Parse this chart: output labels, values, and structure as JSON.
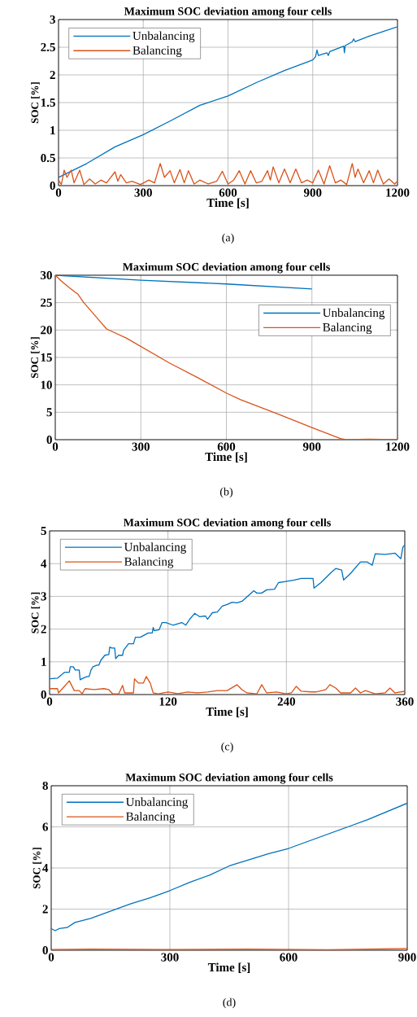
{
  "chart_data": [
    {
      "type": "line",
      "title": "Maximum SOC deviation among four cells",
      "xlabel": "Time [s]",
      "ylabel": "SOC [%]",
      "annotations": [
        "(a)"
      ],
      "xlim": [
        0,
        1200
      ],
      "xticks": [
        0,
        300,
        600,
        900,
        1200
      ],
      "ylim": [
        0,
        3
      ],
      "yticks": [
        0,
        0.5,
        1,
        1.5,
        2,
        2.5,
        3
      ],
      "grid": true,
      "legend": "top left",
      "series": [
        {
          "name": "Unbalancing",
          "color": "#0072bd",
          "x": [
            0,
            100,
            200,
            300,
            400,
            500,
            600,
            700,
            800,
            900,
            910,
            915,
            920,
            950,
            955,
            960,
            1010,
            1012,
            1015,
            1040,
            1045,
            1050,
            1100,
            1200
          ],
          "values": [
            0.15,
            0.4,
            0.7,
            0.92,
            1.18,
            1.45,
            1.62,
            1.86,
            2.08,
            2.27,
            2.33,
            2.45,
            2.35,
            2.4,
            2.35,
            2.42,
            2.52,
            2.4,
            2.53,
            2.6,
            2.65,
            2.6,
            2.7,
            2.87
          ]
        },
        {
          "name": "Balancing",
          "color": "#d95319",
          "x": [
            0,
            10,
            20,
            30,
            45,
            55,
            75,
            90,
            110,
            130,
            150,
            170,
            200,
            210,
            220,
            240,
            260,
            290,
            320,
            340,
            360,
            375,
            395,
            410,
            430,
            445,
            460,
            480,
            500,
            530,
            560,
            580,
            600,
            620,
            640,
            660,
            680,
            700,
            720,
            740,
            750,
            760,
            780,
            800,
            820,
            840,
            860,
            880,
            900,
            920,
            940,
            960,
            980,
            1000,
            1020,
            1040,
            1050,
            1060,
            1080,
            1100,
            1115,
            1130,
            1150,
            1170,
            1190,
            1200
          ],
          "values": [
            0.1,
            0.02,
            0.28,
            0.15,
            0.28,
            0.05,
            0.28,
            0.02,
            0.12,
            0.03,
            0.1,
            0.05,
            0.25,
            0.08,
            0.2,
            0.05,
            0.08,
            0.02,
            0.1,
            0.05,
            0.4,
            0.15,
            0.27,
            0.05,
            0.29,
            0.05,
            0.27,
            0.03,
            0.1,
            0.03,
            0.08,
            0.26,
            0.03,
            0.1,
            0.27,
            0.03,
            0.27,
            0.05,
            0.08,
            0.27,
            0.1,
            0.34,
            0.05,
            0.3,
            0.05,
            0.3,
            0.05,
            0.1,
            0.05,
            0.28,
            0.03,
            0.36,
            0.05,
            0.1,
            0.02,
            0.4,
            0.15,
            0.3,
            0.05,
            0.27,
            0.05,
            0.28,
            0.03,
            0.12,
            0.03,
            0.08
          ]
        }
      ]
    },
    {
      "type": "line",
      "title": "Maximum SOC deviation among four cells",
      "xlabel": "Time [s]",
      "ylabel": "SOC [%]",
      "annotations": [
        "(b)"
      ],
      "xlim": [
        0,
        1200
      ],
      "xticks": [
        0,
        300,
        600,
        900,
        1200
      ],
      "ylim": [
        0,
        30
      ],
      "yticks": [
        0,
        5,
        10,
        15,
        20,
        25,
        30
      ],
      "grid": true,
      "legend": "top right",
      "series": [
        {
          "name": "Unbalancing",
          "color": "#0072bd",
          "x": [
            0,
            300,
            600,
            900
          ],
          "values": [
            30,
            29.1,
            28.4,
            27.5
          ]
        },
        {
          "name": "Balancing",
          "color": "#d95319",
          "x": [
            0,
            20,
            50,
            80,
            100,
            150,
            180,
            250,
            300,
            400,
            500,
            600,
            650,
            700,
            800,
            900,
            950,
            1000,
            1020,
            1100,
            1150,
            1200
          ],
          "values": [
            30,
            29,
            27.7,
            26.5,
            25,
            22,
            20.2,
            18.5,
            17,
            14,
            11.3,
            8.5,
            7.3,
            6.3,
            4.3,
            2.2,
            1.2,
            0.2,
            0,
            0.1,
            0.05,
            0.05
          ]
        }
      ]
    },
    {
      "type": "line",
      "title": "Maximum SOC deviation among four cells",
      "xlabel": "Time [s]",
      "ylabel": "SOC [%]",
      "annotations": [
        "(c)"
      ],
      "xlim": [
        0,
        360
      ],
      "xticks": [
        0,
        120,
        240,
        360
      ],
      "ylim": [
        0,
        5
      ],
      "yticks": [
        0,
        1,
        2,
        3,
        4,
        5
      ],
      "grid": true,
      "legend": "top left",
      "series": [
        {
          "name": "Unbalancing",
          "color": "#0072bd",
          "x": [
            0,
            8,
            12,
            15,
            20,
            21,
            24,
            26,
            30,
            31,
            34,
            38,
            40,
            42,
            44,
            48,
            50,
            52,
            56,
            60,
            61,
            63,
            66,
            67,
            70,
            74,
            75,
            80,
            85,
            87,
            92,
            95,
            100,
            104,
            105,
            106,
            111,
            114,
            118,
            125,
            134,
            138,
            142,
            147,
            152,
            158,
            160,
            165,
            170,
            175,
            180,
            185,
            190,
            195,
            207,
            210,
            215,
            220,
            228,
            232,
            238,
            248,
            255,
            267,
            268,
            275,
            285,
            290,
            296,
            298,
            305,
            315,
            322,
            327,
            330,
            340,
            350,
            356,
            358,
            360
          ],
          "values": [
            0.48,
            0.5,
            0.6,
            0.68,
            0.68,
            0.85,
            0.85,
            0.75,
            0.75,
            0.45,
            0.5,
            0.55,
            0.55,
            0.75,
            0.85,
            0.9,
            0.9,
            1.05,
            1.2,
            1.22,
            1.45,
            1.42,
            1.42,
            1.1,
            1.2,
            1.2,
            1.35,
            1.55,
            1.55,
            1.75,
            1.75,
            1.8,
            1.88,
            1.88,
            2.05,
            1.95,
            1.98,
            2.2,
            2.2,
            2.12,
            2.2,
            2.12,
            2.3,
            2.48,
            2.38,
            2.4,
            2.3,
            2.5,
            2.52,
            2.7,
            2.75,
            2.82,
            2.8,
            2.85,
            3.17,
            3.1,
            3.1,
            3.2,
            3.22,
            3.42,
            3.45,
            3.5,
            3.55,
            3.55,
            3.25,
            3.42,
            3.72,
            3.85,
            3.8,
            3.5,
            3.7,
            4.05,
            4.05,
            3.95,
            4.3,
            4.28,
            4.32,
            4.15,
            4.5,
            4.57
          ]
        },
        {
          "name": "Balancing",
          "color": "#d95319",
          "x": [
            0,
            8,
            9,
            15,
            20,
            25,
            30,
            33,
            36,
            45,
            55,
            60,
            64,
            70,
            74,
            76,
            85,
            86,
            90,
            95,
            98,
            102,
            105,
            110,
            120,
            130,
            140,
            150,
            160,
            170,
            180,
            190,
            195,
            200,
            210,
            215,
            220,
            230,
            240,
            245,
            250,
            255,
            265,
            270,
            280,
            284,
            290,
            295,
            305,
            310,
            315,
            320,
            330,
            340,
            345,
            350,
            360
          ],
          "values": [
            0.18,
            0.18,
            0.05,
            0.25,
            0.42,
            0.12,
            0.12,
            0.02,
            0.18,
            0.15,
            0.18,
            0.15,
            0.02,
            0.02,
            0.28,
            0.05,
            0.05,
            0.48,
            0.35,
            0.35,
            0.55,
            0.35,
            0.05,
            0.02,
            0.08,
            0.03,
            0.08,
            0.05,
            0.08,
            0.12,
            0.12,
            0.3,
            0.15,
            0.05,
            0.02,
            0.3,
            0.05,
            0.08,
            0.02,
            0.05,
            0.25,
            0.1,
            0.08,
            0.08,
            0.15,
            0.3,
            0.2,
            0.05,
            0.05,
            0.2,
            0.05,
            0.12,
            0.02,
            0.05,
            0.2,
            0.05,
            0.1
          ]
        }
      ]
    },
    {
      "type": "line",
      "title": "Maximum SOC deviation among four cells",
      "xlabel": "Time [s]",
      "ylabel": "SOC [%]",
      "annotations": [
        "(d)"
      ],
      "xlim": [
        0,
        900
      ],
      "xticks": [
        0,
        300,
        600,
        900
      ],
      "ylim": [
        0,
        8
      ],
      "yticks": [
        0,
        2,
        4,
        6,
        8
      ],
      "grid": true,
      "legend": "top left",
      "series": [
        {
          "name": "Unbalancing",
          "color": "#0072bd",
          "x": [
            0,
            10,
            20,
            40,
            60,
            100,
            150,
            200,
            250,
            300,
            350,
            400,
            450,
            500,
            550,
            600,
            650,
            700,
            750,
            800,
            850,
            900
          ],
          "values": [
            1.05,
            0.95,
            1.05,
            1.1,
            1.35,
            1.55,
            1.9,
            2.25,
            2.55,
            2.9,
            3.3,
            3.65,
            4.1,
            4.4,
            4.7,
            4.95,
            5.3,
            5.65,
            6.0,
            6.35,
            6.75,
            7.15
          ]
        },
        {
          "name": "Balancing",
          "color": "#d95319",
          "x": [
            0,
            100,
            300,
            500,
            700,
            900
          ],
          "values": [
            0.03,
            0.05,
            0.03,
            0.05,
            0.02,
            0.08
          ]
        }
      ]
    }
  ]
}
